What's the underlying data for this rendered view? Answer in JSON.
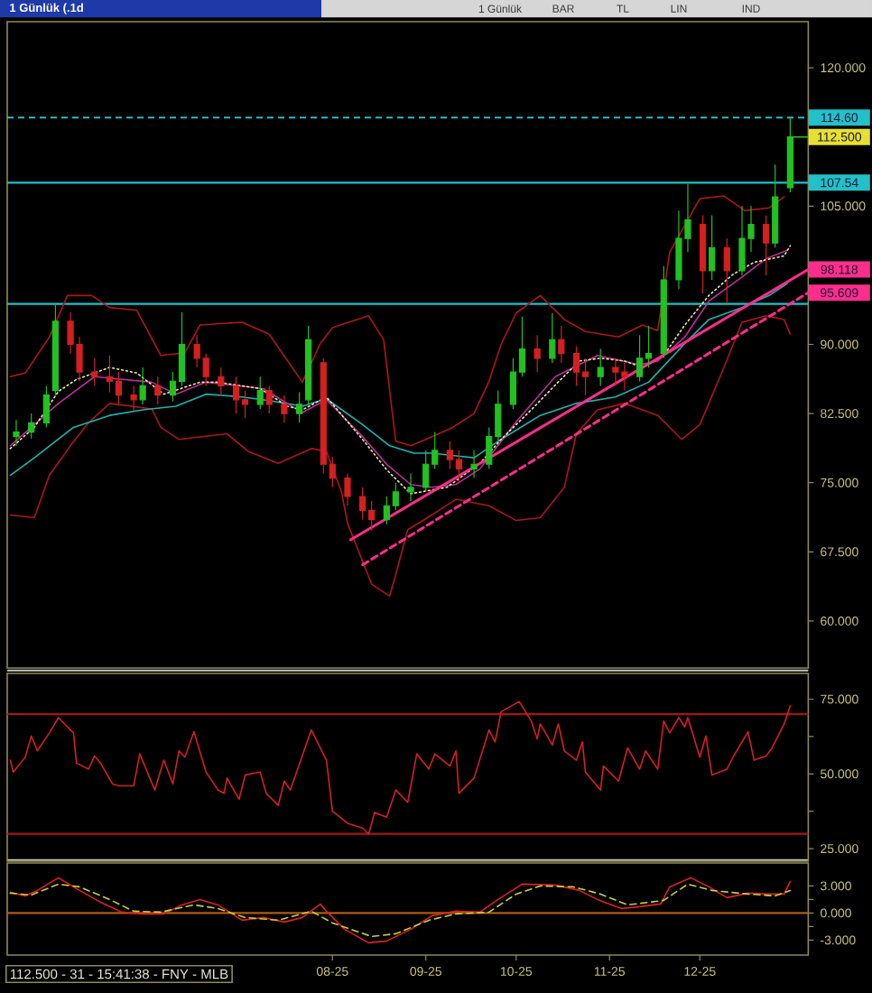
{
  "chart_data": [
    {
      "type": "candlestick",
      "title": "1 Günlük (.1d",
      "annotations": [
        {
          "text": "112.500",
          "x": "2025-12-31",
          "y": 112.5
        },
        "1 Günlük",
        "BAR",
        "TL",
        "LIN",
        "IND"
      ],
      "x": [
        "2025-04-18",
        "2025-04-23",
        "2025-04-28",
        "2025-05-01",
        "2025-05-06",
        "2025-05-09",
        "2025-05-14",
        "2025-05-19",
        "2025-05-22",
        "2025-05-27",
        "2025-05-30",
        "2025-06-04",
        "2025-06-09",
        "2025-06-12",
        "2025-06-17",
        "2025-06-20",
        "2025-06-25",
        "2025-06-30",
        "2025-07-03",
        "2025-07-08",
        "2025-07-11",
        "2025-07-16",
        "2025-07-21",
        "2025-07-24",
        "2025-07-29",
        "2025-08-01",
        "2025-08-06",
        "2025-08-11",
        "2025-08-14",
        "2025-08-19",
        "2025-08-22",
        "2025-08-27",
        "2025-09-01",
        "2025-09-04",
        "2025-09-09",
        "2025-09-12",
        "2025-09-17",
        "2025-09-22",
        "2025-09-25",
        "2025-09-30",
        "2025-10-03",
        "2025-10-08",
        "2025-10-13",
        "2025-10-16",
        "2025-10-21",
        "2025-10-24",
        "2025-10-29",
        "2025-11-03",
        "2025-11-06",
        "2025-11-11",
        "2025-11-14",
        "2025-11-19",
        "2025-11-24",
        "2025-11-27",
        "2025-12-02",
        "2025-12-05",
        "2025-12-10",
        "2025-12-15",
        "2025-12-18",
        "2025-12-23",
        "2025-12-26",
        "2025-12-31"
      ],
      "ohlc": [
        [
          80,
          81.8,
          79,
          80.5
        ],
        [
          80.5,
          82.5,
          79.8,
          81.5
        ],
        [
          81.5,
          85.5,
          81,
          84.5
        ],
        [
          85,
          94.3,
          84.5,
          92.5
        ],
        [
          92.5,
          93.5,
          89,
          90
        ],
        [
          90,
          90.8,
          86,
          87
        ],
        [
          87,
          88.5,
          85.5,
          86.5
        ],
        [
          86.5,
          88.8,
          84.8,
          86
        ],
        [
          86,
          87,
          83.5,
          84.5
        ],
        [
          84.5,
          85.5,
          82.8,
          84
        ],
        [
          84,
          87.5,
          83.5,
          85.5
        ],
        [
          85.5,
          86.5,
          83.5,
          84.5
        ],
        [
          84.5,
          87,
          83.8,
          86
        ],
        [
          86,
          93.5,
          85.5,
          90
        ],
        [
          90,
          91,
          87.5,
          88.5
        ],
        [
          88.5,
          89,
          85.5,
          86.5
        ],
        [
          86.5,
          87.5,
          84.5,
          85.5
        ],
        [
          85.5,
          86.5,
          82.5,
          84
        ],
        [
          84,
          85,
          82,
          83.5
        ],
        [
          83.5,
          86.5,
          83,
          85
        ],
        [
          85,
          85.5,
          82.5,
          83.5
        ],
        [
          83.5,
          84.5,
          81.5,
          82.5
        ],
        [
          82.5,
          84.8,
          81.5,
          83.5
        ],
        [
          84,
          92,
          83.5,
          90.5
        ],
        [
          88,
          88.5,
          76,
          77
        ],
        [
          77,
          77.8,
          74.5,
          75.5
        ],
        [
          75.5,
          76,
          72.5,
          73.5
        ],
        [
          73.5,
          74.5,
          71,
          72
        ],
        [
          72,
          73,
          69.8,
          71
        ],
        [
          71,
          73.5,
          70.5,
          72.5
        ],
        [
          72.5,
          75,
          72,
          74
        ],
        [
          74,
          76,
          73,
          74.5
        ],
        [
          74.5,
          78.5,
          74,
          77
        ],
        [
          77,
          80.5,
          76.5,
          78.5
        ],
        [
          78.5,
          79.5,
          76.5,
          77.5
        ],
        [
          77.5,
          78.5,
          75,
          76.5
        ],
        [
          76.5,
          78.5,
          75.5,
          77
        ],
        [
          77,
          81,
          76.5,
          80
        ],
        [
          80,
          85,
          79.5,
          83.5
        ],
        [
          83.5,
          88.5,
          83,
          87
        ],
        [
          87,
          93,
          86.5,
          89.5
        ],
        [
          89.5,
          91,
          87,
          88.5
        ],
        [
          88.5,
          93.4,
          88,
          90.5
        ],
        [
          90.5,
          92,
          88,
          89
        ],
        [
          89,
          89.8,
          85.5,
          87
        ],
        [
          87,
          88.5,
          84.5,
          86.5
        ],
        [
          86.5,
          89.5,
          85.5,
          87.5
        ],
        [
          87.5,
          88.5,
          85.5,
          87
        ],
        [
          87,
          88,
          85,
          86.5
        ],
        [
          86.5,
          91,
          86,
          88.5
        ],
        [
          88.5,
          92,
          87.5,
          89
        ],
        [
          89,
          98.5,
          88.5,
          97
        ],
        [
          97,
          104.5,
          96,
          101.5
        ],
        [
          101.5,
          107.4,
          100,
          103.5
        ],
        [
          103,
          104,
          95.5,
          98
        ],
        [
          98,
          104,
          97,
          100.5
        ],
        [
          100.5,
          101.5,
          94.5,
          98
        ],
        [
          98,
          105,
          97.5,
          101.5
        ],
        [
          101.5,
          105,
          100,
          103
        ],
        [
          103,
          104,
          97.5,
          101
        ],
        [
          101,
          109.5,
          100.5,
          106
        ],
        [
          107,
          114.6,
          106.5,
          112.5
        ]
      ],
      "colors": [
        "#22c022",
        "#22c022",
        "#22c022",
        "#22c022",
        "#d42020",
        "#d42020",
        "#d42020",
        "#d42020",
        "#d42020",
        "#d42020",
        "#22c022",
        "#d42020",
        "#22c022",
        "#22c022",
        "#d42020",
        "#d42020",
        "#d42020",
        "#d42020",
        "#d42020",
        "#22c022",
        "#d42020",
        "#d42020",
        "#22c022",
        "#22c022",
        "#d42020",
        "#d42020",
        "#d42020",
        "#d42020",
        "#d42020",
        "#22c022",
        "#22c022",
        "#22c022",
        "#22c022",
        "#22c022",
        "#d42020",
        "#d42020",
        "#22c022",
        "#22c022",
        "#22c022",
        "#22c022",
        "#22c022",
        "#d42020",
        "#22c022",
        "#d42020",
        "#d42020",
        "#d42020",
        "#22c022",
        "#d42020",
        "#d42020",
        "#22c022",
        "#22c022",
        "#22c022",
        "#22c022",
        "#22c022",
        "#d42020",
        "#22c022",
        "#d42020",
        "#22c022",
        "#22c022",
        "#d42020",
        "#22c022",
        "#22c022"
      ],
      "series": [
        {
          "type": "line",
          "color": "#b01616",
          "x": [
            "2025-04-16",
            "2025-04-21",
            "2025-04-29",
            "2025-05-05",
            "2025-05-13",
            "2025-05-19",
            "2025-05-28",
            "2025-06-05",
            "2025-06-13",
            "2025-06-18",
            "2025-07-02",
            "2025-07-11",
            "2025-07-22",
            "2025-07-28",
            "2025-08-01",
            "2025-08-13",
            "2025-08-18",
            "2025-08-20",
            "2025-08-22",
            "2025-08-27",
            "2025-09-01",
            "2025-09-10",
            "2025-09-17",
            "2025-09-22",
            "2025-09-26",
            "2025-10-01",
            "2025-10-09",
            "2025-10-17",
            "2025-10-24",
            "2025-11-04",
            "2025-11-12",
            "2025-11-17",
            "2025-11-21",
            "2025-12-01",
            "2025-12-09",
            "2025-12-16",
            "2025-12-24",
            "2025-12-29"
          ],
          "values": [
            86.5,
            86.9,
            90.8,
            95.3,
            95.3,
            94,
            93.7,
            88.8,
            89.1,
            92.1,
            92.4,
            91.1,
            85.9,
            90.1,
            91.8,
            93.1,
            90.5,
            85,
            79.5,
            79,
            79.7,
            81,
            82.5,
            86,
            90,
            93.4,
            95.3,
            92.7,
            91.4,
            90.8,
            92.1,
            91.5,
            100,
            105.8,
            106.1,
            104.5,
            104.8,
            106
          ]
        },
        {
          "type": "line",
          "color": "#b01616",
          "x": [
            "2025-04-16",
            "2025-04-24",
            "2025-04-29",
            "2025-05-06",
            "2025-05-12",
            "2025-05-19",
            "2025-06-02",
            "2025-06-05",
            "2025-06-11",
            "2025-06-27",
            "2025-07-04",
            "2025-07-14",
            "2025-07-25",
            "2025-07-30",
            "2025-08-04",
            "2025-08-06",
            "2025-08-14",
            "2025-08-20",
            "2025-08-22",
            "2025-08-26",
            "2025-09-03",
            "2025-09-11",
            "2025-09-22",
            "2025-10-01",
            "2025-10-09",
            "2025-10-17",
            "2025-10-21",
            "2025-10-28",
            "2025-11-06",
            "2025-11-17",
            "2025-11-25",
            "2025-12-01",
            "2025-12-09",
            "2025-12-15",
            "2025-12-23",
            "2025-12-29",
            "2025-12-31"
          ],
          "values": [
            71.5,
            71.2,
            75.8,
            79,
            81.5,
            83.6,
            83,
            81,
            79.7,
            80.3,
            78.4,
            77.1,
            78.7,
            78.4,
            74,
            70.6,
            64,
            62.7,
            65,
            69.9,
            71.5,
            73.2,
            72.5,
            70.9,
            71.2,
            74.5,
            80.3,
            82.9,
            83.6,
            82.3,
            79.7,
            81.3,
            87.5,
            92.4,
            93.1,
            92.7,
            91.1
          ]
        },
        {
          "type": "line",
          "color": "#1fb3b3",
          "x": [
            "2025-04-16",
            "2025-04-24",
            "2025-05-07",
            "2025-05-19",
            "2025-05-30",
            "2025-06-10",
            "2025-06-20",
            "2025-07-02",
            "2025-07-11",
            "2025-07-22",
            "2025-07-30",
            "2025-08-11",
            "2025-08-20",
            "2025-08-28",
            "2025-09-03",
            "2025-09-17",
            "2025-09-26",
            "2025-10-09",
            "2025-10-21",
            "2025-11-03",
            "2025-11-14",
            "2025-11-26",
            "2025-12-04",
            "2025-12-15",
            "2025-12-24",
            "2025-12-30"
          ],
          "values": [
            75.8,
            77.7,
            81,
            82.3,
            82.9,
            83.3,
            84.6,
            84.3,
            83.9,
            83.3,
            84.1,
            81.3,
            79,
            78.2,
            78.2,
            77.7,
            79.7,
            82.3,
            83.6,
            84.3,
            85.9,
            90.1,
            92.7,
            94,
            95.3,
            96.6
          ]
        },
        {
          "type": "line",
          "color": "#b8309a",
          "x": [
            "2025-04-16",
            "2025-05-02",
            "2025-05-14",
            "2025-06-02",
            "2025-06-10",
            "2025-06-20",
            "2025-07-09",
            "2025-07-22",
            "2025-07-30",
            "2025-08-11",
            "2025-08-19",
            "2025-08-27",
            "2025-09-03",
            "2025-09-11",
            "2025-09-19",
            "2025-10-01",
            "2025-10-14",
            "2025-10-28",
            "2025-11-11",
            "2025-11-17",
            "2025-11-26",
            "2025-12-04",
            "2025-12-15",
            "2025-12-23",
            "2025-12-30"
          ],
          "values": [
            79,
            83.6,
            86.5,
            85.9,
            84.6,
            85.9,
            85.2,
            82.6,
            84,
            80,
            77,
            74.8,
            74.5,
            74.8,
            76.5,
            81.6,
            86.5,
            88.8,
            87.8,
            88.2,
            90.8,
            94.7,
            97.3,
            99.3,
            100.2
          ]
        },
        {
          "type": "line",
          "color": "#f0e6a0",
          "line_style": "dotted",
          "x": [
            "2025-04-16",
            "2025-04-24",
            "2025-05-02",
            "2025-05-08",
            "2025-05-19",
            "2025-05-28",
            "2025-06-06",
            "2025-06-18",
            "2025-06-24",
            "2025-07-08",
            "2025-07-17",
            "2025-07-22",
            "2025-07-30",
            "2025-08-11",
            "2025-08-19",
            "2025-08-27",
            "2025-09-08",
            "2025-09-19",
            "2025-09-26",
            "2025-10-06",
            "2025-10-14",
            "2025-10-22",
            "2025-10-29",
            "2025-11-06",
            "2025-11-12",
            "2025-11-19",
            "2025-11-26",
            "2025-12-04",
            "2025-12-12",
            "2025-12-19",
            "2025-12-29",
            "2025-12-31"
          ],
          "values": [
            78.7,
            81,
            84.9,
            86.2,
            87.5,
            86.9,
            84.6,
            85.9,
            85.9,
            85.2,
            83.3,
            82.9,
            84.3,
            79.7,
            76.4,
            73.8,
            74.5,
            77.1,
            79.7,
            82.9,
            85.6,
            88.2,
            88.5,
            88.2,
            87.5,
            88.8,
            92.1,
            95.3,
            97.6,
            98.9,
            99.6,
            100.7
          ]
        },
        {
          "type": "line",
          "color": "#ff2d8c",
          "x": [
            "2025-08-07",
            "2026-01-06"
          ],
          "values": [
            68.8,
            98.118
          ],
          "value_labels": [
            null,
            "98.118"
          ]
        },
        {
          "type": "line",
          "color": "#ff2d8c",
          "line_style": "dashed",
          "x": [
            "2025-08-11",
            "2026-01-06"
          ],
          "values": [
            66.1,
            95.609
          ],
          "value_labels": [
            null,
            "95.609"
          ]
        }
      ],
      "ref_lines": [
        {
          "axis": "y",
          "value": 114.6,
          "label": "114.60",
          "color": "#22c0c8",
          "line_style": "dashed"
        },
        {
          "axis": "y",
          "value": 107.54,
          "label": "107.54",
          "color": "#22c0c8"
        },
        {
          "axis": "y",
          "value": 94.4,
          "color": "#22c0c8"
        }
      ],
      "xlim": [
        "2025-04-15",
        "2026-01-06"
      ],
      "ylim": [
        54.9,
        125
      ],
      "yticks": [
        {
          "value": 60,
          "label": "60.000"
        },
        {
          "value": 67.5,
          "label": "67.500"
        },
        {
          "value": 75,
          "label": "75.000"
        },
        {
          "value": 82.5,
          "label": "82.500"
        },
        {
          "value": 90,
          "label": "90.000"
        },
        {
          "value": 97.5,
          "label": null
        },
        {
          "value": 105,
          "label": "105.000"
        },
        {
          "value": 112.5,
          "label": null
        },
        {
          "value": 120,
          "label": "120.000"
        }
      ],
      "tick_labels": "y"
    },
    {
      "type": "line",
      "color": "#d42020",
      "x": [
        "2025-04-16",
        "2025-04-17",
        "2025-04-21",
        "2025-04-23",
        "2025-04-25",
        "2025-04-29",
        "2025-05-02",
        "2025-05-07",
        "2025-05-08",
        "2025-05-12",
        "2025-05-14",
        "2025-05-16",
        "2025-05-20",
        "2025-05-22",
        "2025-05-27",
        "2025-05-29",
        "2025-06-03",
        "2025-06-06",
        "2025-06-09",
        "2025-06-11",
        "2025-06-13",
        "2025-06-16",
        "2025-06-20",
        "2025-06-24",
        "2025-06-26",
        "2025-06-27",
        "2025-07-01",
        "2025-07-03",
        "2025-07-08",
        "2025-07-10",
        "2025-07-14",
        "2025-07-16",
        "2025-07-18",
        "2025-07-25",
        "2025-07-30",
        "2025-08-01",
        "2025-08-06",
        "2025-08-11",
        "2025-08-13",
        "2025-08-15",
        "2025-08-19",
        "2025-08-22",
        "2025-08-26",
        "2025-08-29",
        "2025-09-02",
        "2025-09-04",
        "2025-09-09",
        "2025-09-11",
        "2025-09-12",
        "2025-09-17",
        "2025-09-22",
        "2025-09-24",
        "2025-09-26",
        "2025-10-02",
        "2025-10-06",
        "2025-10-08",
        "2025-10-09",
        "2025-10-13",
        "2025-10-15",
        "2025-10-17",
        "2025-10-21",
        "2025-10-23",
        "2025-10-24",
        "2025-10-29",
        "2025-10-30",
        "2025-11-04",
        "2025-11-07",
        "2025-11-11",
        "2025-11-13",
        "2025-11-17",
        "2025-11-19",
        "2025-11-21",
        "2025-11-24",
        "2025-11-26",
        "2025-11-27",
        "2025-12-01",
        "2025-12-03",
        "2025-12-05",
        "2025-12-10",
        "2025-12-12",
        "2025-12-17",
        "2025-12-19",
        "2025-12-23",
        "2025-12-25",
        "2025-12-29",
        "2025-12-31"
      ],
      "values": [
        54.6,
        50.6,
        55.6,
        62.7,
        57.7,
        63.7,
        68.8,
        63.7,
        53.6,
        51.6,
        56,
        53.6,
        46.6,
        46,
        46,
        56.7,
        44.6,
        54.6,
        46.6,
        57.7,
        55.6,
        64.1,
        50.6,
        44.6,
        43.5,
        48.6,
        41.5,
        49.6,
        50.6,
        43.5,
        39.5,
        47.6,
        44.6,
        64.7,
        54.6,
        37.5,
        33.5,
        31.9,
        29.8,
        37.1,
        35.5,
        44.6,
        40.5,
        56.7,
        51.6,
        56.7,
        52.6,
        57.7,
        43.5,
        48.6,
        64.7,
        60.7,
        70.8,
        74.2,
        67.7,
        61.7,
        66.7,
        59.7,
        66.7,
        57.7,
        54.6,
        60.7,
        50.6,
        44.6,
        52.6,
        47.6,
        58.7,
        51.6,
        57.7,
        51.6,
        67.7,
        63.7,
        68.8,
        65.7,
        68.8,
        55.6,
        62.7,
        49.6,
        51.6,
        55.6,
        64.1,
        54.6,
        56,
        58.7,
        66.7,
        72.8
      ],
      "ref_lines": [
        {
          "axis": "y",
          "value": 70,
          "color": "#a01818"
        },
        {
          "axis": "y",
          "value": 30,
          "color": "#a01818"
        }
      ],
      "xlim": [
        "2025-04-15",
        "2026-01-06"
      ],
      "ylim": [
        20.8,
        83.6
      ],
      "yticks": [
        {
          "value": 25,
          "label": "25.000"
        },
        {
          "value": 37.5,
          "label": null
        },
        {
          "value": 50,
          "label": "50.000"
        },
        {
          "value": 62.5,
          "label": null
        },
        {
          "value": 75,
          "label": "75.000"
        }
      ],
      "tick_labels": "y"
    },
    {
      "type": "line",
      "annotations": [
        "112.500 - 31 - 15:41:38 - FNY - MLB"
      ],
      "series": [
        {
          "color": "#e02020",
          "x": [
            "2025-04-16",
            "2025-04-21",
            "2025-04-25",
            "2025-05-02",
            "2025-05-09",
            "2025-05-16",
            "2025-05-23",
            "2025-05-30",
            "2025-06-06",
            "2025-06-12",
            "2025-06-18",
            "2025-06-24",
            "2025-07-02",
            "2025-07-09",
            "2025-07-16",
            "2025-07-22",
            "2025-07-28",
            "2025-07-30",
            "2025-08-05",
            "2025-08-13",
            "2025-08-19",
            "2025-08-27",
            "2025-09-03",
            "2025-09-11",
            "2025-09-19",
            "2025-09-25",
            "2025-10-03",
            "2025-10-14",
            "2025-10-22",
            "2025-10-28",
            "2025-11-05",
            "2025-11-11",
            "2025-11-18",
            "2025-11-21",
            "2025-11-28",
            "2025-12-04",
            "2025-12-10",
            "2025-12-17",
            "2025-12-23",
            "2025-12-29",
            "2025-12-31"
          ],
          "values": [
            2.3,
            1.9,
            2.5,
            3.9,
            2.5,
            1.2,
            0.1,
            -0.1,
            -0.1,
            0.9,
            1.5,
            0.9,
            -0.8,
            -0.5,
            -1,
            -0.5,
            1,
            0.2,
            -1.8,
            -3.3,
            -3.1,
            -1.8,
            -0.3,
            0.2,
            0.1,
            1.5,
            3.2,
            3.1,
            2.5,
            1.5,
            0.5,
            0.7,
            1,
            2.9,
            3.9,
            2.9,
            1.7,
            2.2,
            2.1,
            2.1,
            3.5
          ]
        },
        {
          "color": "#c8d040",
          "line_style": "dashed",
          "x": [
            "2025-04-16",
            "2025-04-23",
            "2025-05-02",
            "2025-05-09",
            "2025-05-19",
            "2025-05-27",
            "2025-06-05",
            "2025-06-16",
            "2025-06-24",
            "2025-07-03",
            "2025-07-14",
            "2025-07-25",
            "2025-08-01",
            "2025-08-14",
            "2025-08-22",
            "2025-09-02",
            "2025-09-11",
            "2025-09-22",
            "2025-10-01",
            "2025-10-09",
            "2025-10-20",
            "2025-10-29",
            "2025-11-07",
            "2025-11-19",
            "2025-11-27",
            "2025-12-05",
            "2025-12-17",
            "2025-12-26",
            "2025-12-31"
          ],
          "values": [
            2.2,
            2,
            3.2,
            2.9,
            1.5,
            0.2,
            0.1,
            0.9,
            0.5,
            -0.5,
            -0.8,
            0.2,
            -1.1,
            -2.6,
            -2.3,
            -0.8,
            -0.1,
            0.1,
            2.1,
            3,
            2.9,
            2.1,
            0.9,
            1.4,
            3.2,
            2.5,
            2.1,
            1.9,
            2.5
          ]
        }
      ],
      "ref_lines": [
        {
          "axis": "y",
          "value": 0,
          "color": "#b05a10"
        }
      ],
      "xlim": [
        "2025-04-15",
        "2026-01-06"
      ],
      "ylim": [
        -4.66,
        5.54
      ],
      "xticks": [
        {
          "value": "2025-08-01",
          "label": "08-25"
        },
        {
          "value": "2025-09-01",
          "label": "09-25"
        },
        {
          "value": "2025-10-01",
          "label": "10-25"
        },
        {
          "value": "2025-11-01",
          "label": "11-25"
        },
        {
          "value": "2025-12-01",
          "label": "12-25"
        }
      ],
      "yticks": [
        {
          "value": -3,
          "label": "-3.000"
        },
        {
          "value": -1.5,
          "label": null
        },
        {
          "value": 0,
          "label": "0.000"
        },
        {
          "value": 1.5,
          "label": null
        },
        {
          "value": 3,
          "label": "3.000"
        }
      ]
    }
  ]
}
